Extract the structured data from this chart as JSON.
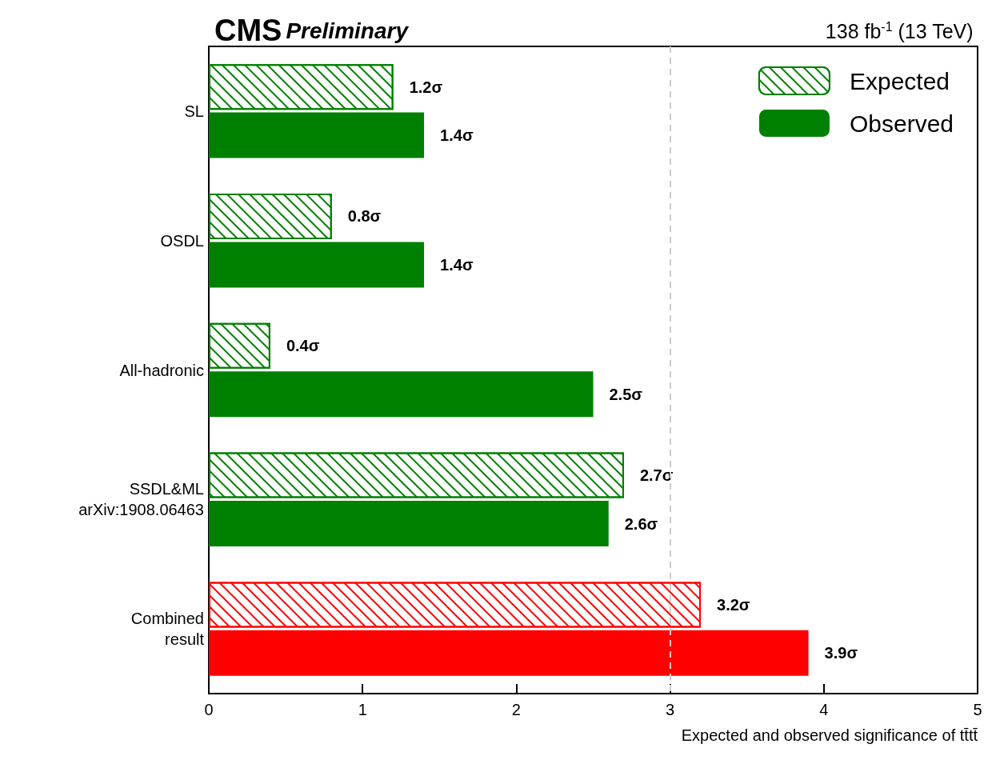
{
  "chart_data": {
    "type": "bar",
    "orientation": "horizontal",
    "title": "CMS",
    "subtitle": "Preliminary",
    "annotations": [
      "138 fb$^{-1}$ (13 TeV)"
    ],
    "xlabel": "Expected and observed significance of tt̄tt̄",
    "categories": [
      "SL",
      "OSDL",
      "All-hadronic",
      "SSDL&ML\narXiv:1908.06463",
      "Combined\nresult"
    ],
    "series": [
      {
        "name": "Expected",
        "color": "#008000",
        "colors": [
          "#008000",
          "#008000",
          "#008000",
          "#008000",
          "#ff0000"
        ],
        "values": [
          1.2,
          0.8,
          0.4,
          2.7,
          3.2
        ],
        "value_labels": [
          "1.2σ",
          "0.8σ",
          "0.4σ",
          "2.7σ",
          "3.2σ"
        ]
      },
      {
        "name": "Observed",
        "color": "#008000",
        "colors": [
          "#008000",
          "#008000",
          "#008000",
          "#008000",
          "#ff0000"
        ],
        "values": [
          1.4,
          1.4,
          2.5,
          2.6,
          3.9
        ],
        "value_labels": [
          "1.4σ",
          "1.4σ",
          "2.5σ",
          "2.6σ",
          "3.9σ"
        ]
      }
    ],
    "xlim": [
      0,
      5
    ],
    "xticks": [
      0,
      1,
      2,
      3,
      4,
      5
    ],
    "ref_lines": [
      {
        "axis": "x",
        "value": 3,
        "color": "#cccccc",
        "line_style": "dashed"
      }
    ],
    "legend": "top right",
    "grid": false
  }
}
